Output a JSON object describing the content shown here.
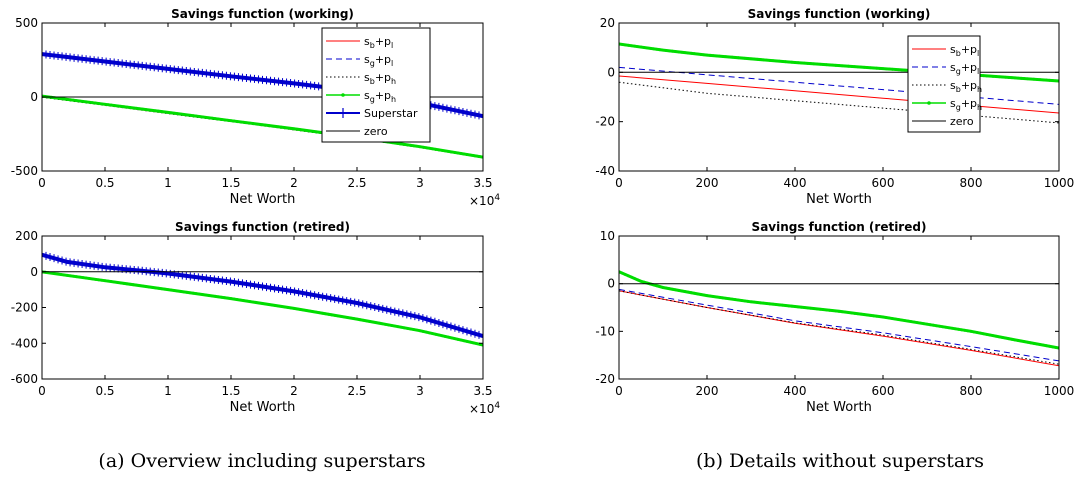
{
  "colors": {
    "sb_pl": "#ff0000",
    "sg_pl": "#0000cc",
    "sb_ph": "#000000",
    "sg_ph": "#00dd00",
    "superstar": "#0000cc",
    "zero": "#000000",
    "axis": "#000000"
  },
  "captions": {
    "a": "(a) Overview including superstars",
    "b": "(b) Details without superstars"
  },
  "chart_data": [
    {
      "id": "tl",
      "type": "line",
      "title": "Savings function (working)",
      "xlabel": "Net Worth",
      "ylabel": "",
      "xlim": [
        0,
        35000
      ],
      "ylim": [
        -500,
        500
      ],
      "xticks": [
        0,
        5000,
        10000,
        15000,
        20000,
        25000,
        30000,
        35000
      ],
      "xtick_labels": [
        "0",
        "0.5",
        "1",
        "1.5",
        "2",
        "2.5",
        "3",
        "3.5"
      ],
      "x_exponent": "×10",
      "x_exponent_power": "4",
      "yticks": [
        -500,
        0,
        500
      ],
      "ytick_labels": [
        "-500",
        "0",
        "500"
      ],
      "legend": true,
      "legend_position": "top-right",
      "grid": false,
      "series": [
        {
          "key": "sb_pl",
          "label_main": "s",
          "label_sub1": "b",
          "label_mid": "+p",
          "label_sub2": "l",
          "x": [
            0,
            5000,
            10000,
            15000,
            20000,
            25000,
            30000,
            35000
          ],
          "y": [
            0,
            -55,
            -110,
            -165,
            -220,
            -278,
            -340,
            -410
          ]
        },
        {
          "key": "sg_pl",
          "label_main": "s",
          "label_sub1": "g",
          "label_mid": "+p",
          "label_sub2": "l",
          "x": [
            0,
            5000,
            10000,
            15000,
            20000,
            25000,
            30000,
            35000
          ],
          "y": [
            4,
            -51,
            -106,
            -162,
            -217,
            -275,
            -338,
            -408
          ]
        },
        {
          "key": "sb_ph",
          "label_main": "s",
          "label_sub1": "b",
          "label_mid": "+p",
          "label_sub2": "h",
          "x": [
            0,
            5000,
            10000,
            15000,
            20000,
            25000,
            30000,
            35000
          ],
          "y": [
            -2,
            -57,
            -112,
            -167,
            -222,
            -280,
            -342,
            -412
          ]
        },
        {
          "key": "sg_ph",
          "label_main": "s",
          "label_sub1": "g",
          "label_mid": "+p",
          "label_sub2": "h",
          "x": [
            0,
            5000,
            10000,
            15000,
            20000,
            25000,
            30000,
            35000
          ],
          "y": [
            6,
            -49,
            -104,
            -160,
            -215,
            -273,
            -336,
            -406
          ]
        },
        {
          "key": "superstar",
          "label_main": "Superstar",
          "x": [
            0,
            2000,
            5000,
            10000,
            15000,
            20000,
            25000,
            30000,
            35000
          ],
          "y": [
            290,
            270,
            240,
            190,
            140,
            92,
            40,
            -40,
            -130
          ]
        },
        {
          "key": "zero",
          "label_main": "zero",
          "x": [
            0,
            35000
          ],
          "y": [
            0,
            0
          ]
        }
      ]
    },
    {
      "id": "bl",
      "type": "line",
      "title": "Savings function (retired)",
      "xlabel": "Net Worth",
      "ylabel": "",
      "xlim": [
        0,
        35000
      ],
      "ylim": [
        -600,
        200
      ],
      "xticks": [
        0,
        5000,
        10000,
        15000,
        20000,
        25000,
        30000,
        35000
      ],
      "xtick_labels": [
        "0",
        "0.5",
        "1",
        "1.5",
        "2",
        "2.5",
        "3",
        "3.5"
      ],
      "x_exponent": "×10",
      "x_exponent_power": "4",
      "yticks": [
        -600,
        -400,
        -200,
        0,
        200
      ],
      "ytick_labels": [
        "-600",
        "-400",
        "-200",
        "0",
        "200"
      ],
      "legend": false,
      "grid": false,
      "series": [
        {
          "key": "sb_pl",
          "x": [
            0,
            5000,
            10000,
            15000,
            20000,
            25000,
            30000,
            35000
          ],
          "y": [
            0,
            -50,
            -100,
            -150,
            -205,
            -265,
            -330,
            -412
          ]
        },
        {
          "key": "sg_pl",
          "x": [
            0,
            5000,
            10000,
            15000,
            20000,
            25000,
            30000,
            35000
          ],
          "y": [
            0,
            -50,
            -100,
            -150,
            -205,
            -265,
            -330,
            -412
          ]
        },
        {
          "key": "sb_ph",
          "x": [
            0,
            5000,
            10000,
            15000,
            20000,
            25000,
            30000,
            35000
          ],
          "y": [
            0,
            -50,
            -100,
            -150,
            -205,
            -265,
            -330,
            -412
          ]
        },
        {
          "key": "sg_ph",
          "x": [
            0,
            5000,
            10000,
            15000,
            20000,
            25000,
            30000,
            35000
          ],
          "y": [
            0,
            -50,
            -100,
            -150,
            -205,
            -265,
            -330,
            -410
          ]
        },
        {
          "key": "superstar",
          "x": [
            0,
            2000,
            5000,
            8000,
            10000,
            15000,
            20000,
            25000,
            30000,
            35000
          ],
          "y": [
            95,
            55,
            25,
            5,
            -10,
            -55,
            -110,
            -175,
            -255,
            -360
          ]
        },
        {
          "key": "zero",
          "x": [
            0,
            35000
          ],
          "y": [
            0,
            0
          ]
        }
      ]
    },
    {
      "id": "tr",
      "type": "line",
      "title": "Savings function (working)",
      "xlabel": "Net Worth",
      "ylabel": "",
      "xlim": [
        0,
        1000
      ],
      "ylim": [
        -40,
        20
      ],
      "xticks": [
        0,
        200,
        400,
        600,
        800,
        1000
      ],
      "xtick_labels": [
        "0",
        "200",
        "400",
        "600",
        "800",
        "1000"
      ],
      "yticks": [
        -40,
        -20,
        0,
        20
      ],
      "ytick_labels": [
        "-40",
        "-20",
        "0",
        "20"
      ],
      "legend": true,
      "legend_position": "top-right",
      "grid": false,
      "series": [
        {
          "key": "sb_pl",
          "label_main": "s",
          "label_sub1": "b",
          "label_mid": "+p",
          "label_sub2": "l",
          "x": [
            0,
            200,
            400,
            600,
            800,
            1000
          ],
          "y": [
            -1.5,
            -4.5,
            -7.5,
            -10.5,
            -13.5,
            -16.5
          ]
        },
        {
          "key": "sg_pl",
          "label_main": "s",
          "label_sub1": "g",
          "label_mid": "+p",
          "label_sub2": "l",
          "x": [
            0,
            200,
            400,
            600,
            800,
            1000
          ],
          "y": [
            2,
            -1,
            -4,
            -7,
            -10,
            -13
          ]
        },
        {
          "key": "sb_ph",
          "label_main": "s",
          "label_sub1": "b",
          "label_mid": "+p",
          "label_sub2": "h",
          "x": [
            0,
            200,
            400,
            600,
            800,
            1000
          ],
          "y": [
            -4,
            -8.5,
            -11.5,
            -14.5,
            -17.5,
            -20.5
          ]
        },
        {
          "key": "sg_ph",
          "label_main": "s",
          "label_sub1": "g",
          "label_mid": "+p",
          "label_sub2": "h",
          "x": [
            0,
            100,
            200,
            400,
            600,
            800,
            1000
          ],
          "y": [
            11.5,
            9,
            7,
            4,
            1.5,
            -1,
            -3.5
          ]
        },
        {
          "key": "zero",
          "label_main": "zero",
          "x": [
            0,
            1000
          ],
          "y": [
            0,
            0
          ]
        }
      ]
    },
    {
      "id": "br",
      "type": "line",
      "title": "Savings function (retired)",
      "xlabel": "Net Worth",
      "ylabel": "",
      "xlim": [
        0,
        1000
      ],
      "ylim": [
        -20,
        10
      ],
      "xticks": [
        0,
        200,
        400,
        600,
        800,
        1000
      ],
      "xtick_labels": [
        "0",
        "200",
        "400",
        "600",
        "800",
        "1000"
      ],
      "yticks": [
        -20,
        -10,
        0,
        10
      ],
      "ytick_labels": [
        "-20",
        "-10",
        "0",
        "10"
      ],
      "legend": false,
      "grid": false,
      "series": [
        {
          "key": "sb_pl",
          "x": [
            0,
            200,
            400,
            600,
            800,
            1000
          ],
          "y": [
            -1.5,
            -5,
            -8.3,
            -11,
            -14,
            -17.2
          ]
        },
        {
          "key": "sg_pl",
          "x": [
            0,
            200,
            400,
            600,
            800,
            1000
          ],
          "y": [
            -1.2,
            -4.5,
            -7.8,
            -10.3,
            -13.2,
            -16.2
          ]
        },
        {
          "key": "sb_ph",
          "x": [
            0,
            200,
            400,
            600,
            800,
            1000
          ],
          "y": [
            -1.5,
            -5,
            -8.2,
            -10.8,
            -13.8,
            -16.9
          ]
        },
        {
          "key": "sg_ph",
          "x": [
            0,
            50,
            100,
            200,
            300,
            400,
            500,
            600,
            700,
            800,
            900,
            1000
          ],
          "y": [
            2.5,
            0.5,
            -0.8,
            -2.5,
            -3.8,
            -4.8,
            -5.8,
            -7,
            -8.5,
            -10,
            -11.8,
            -13.5
          ]
        },
        {
          "key": "zero",
          "x": [
            0,
            1000
          ],
          "y": [
            0,
            0
          ]
        }
      ]
    }
  ]
}
